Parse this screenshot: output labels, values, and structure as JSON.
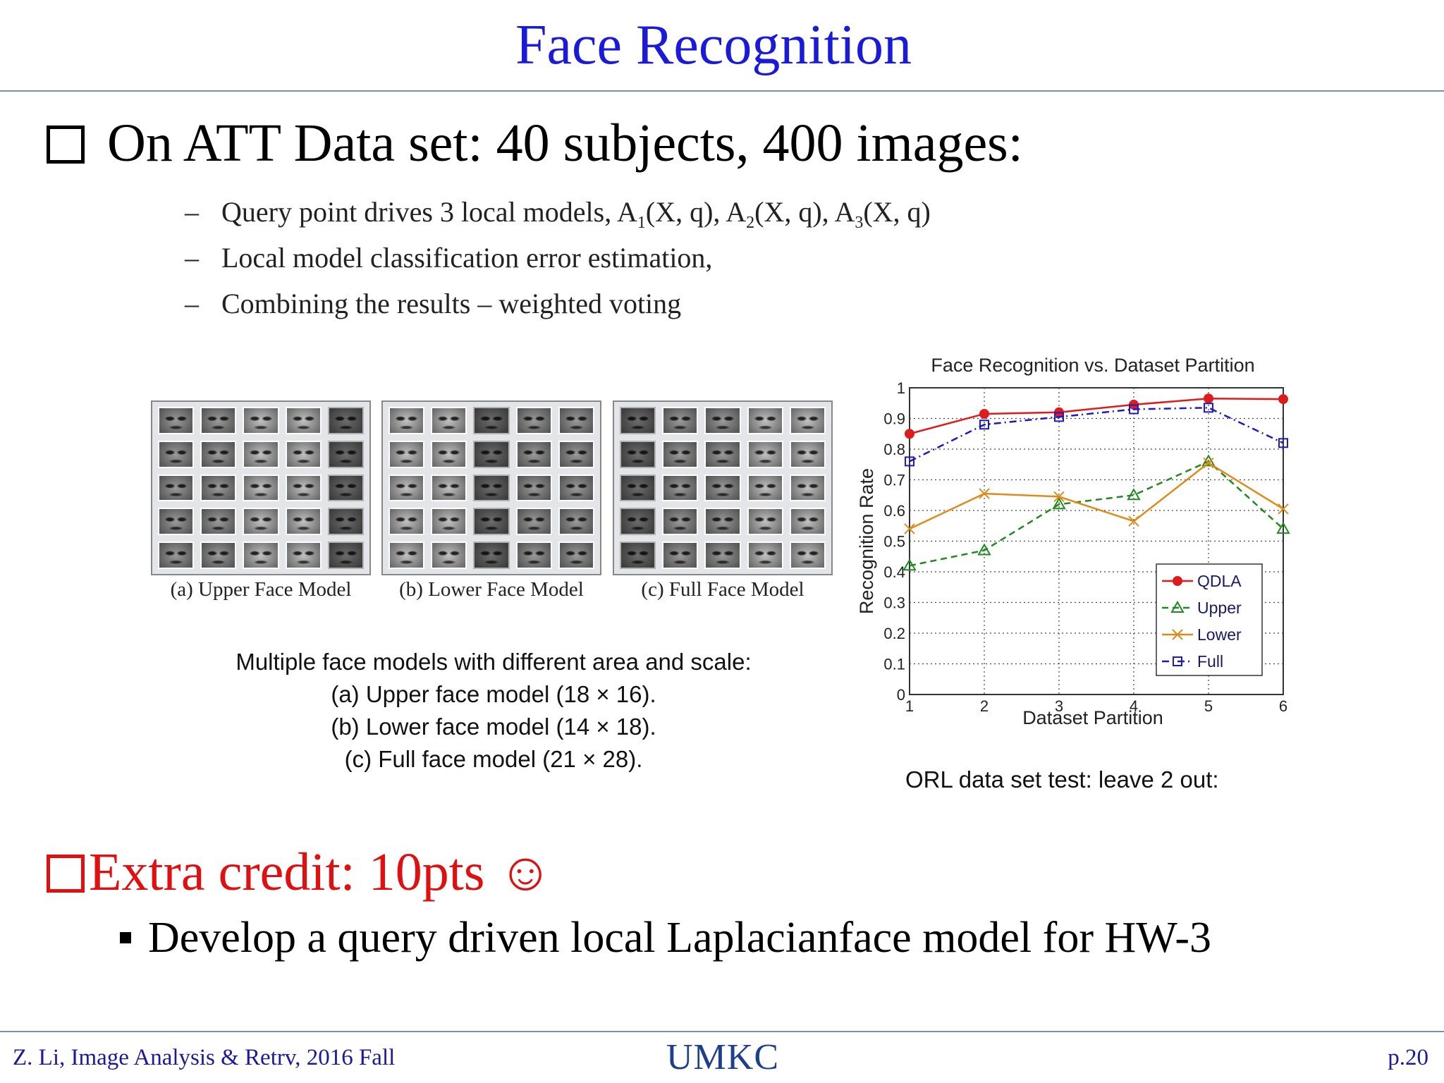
{
  "slide": {
    "title": "Face Recognition",
    "main_bullet": "On ATT Data set: 40 subjects, 400 images:",
    "sub_bullets": [
      {
        "pre": "Query point drives 3 local models, A",
        "s1": "1",
        "m1": "(X, q), A",
        "s2": "2",
        "m2": "(X, q), A",
        "s3": "3",
        "post": "(X, q)"
      },
      {
        "text": "Local model classification error estimation,"
      },
      {
        "text": "Combining the results – weighted voting"
      }
    ]
  },
  "face_models": {
    "panels": [
      {
        "caption": "(a) Upper Face Model"
      },
      {
        "caption": "(b) Lower Face Model"
      },
      {
        "caption": "(c)  Full Face Model"
      }
    ],
    "description": [
      "Multiple face models with different area and scale:",
      "(a) Upper face model (18 × 16).",
      "(b) Lower face model (14 × 18).",
      "(c) Full face model (21 × 28)."
    ]
  },
  "chart_data": {
    "type": "line",
    "title": "Face Recognition vs. Dataset Partition",
    "xlabel": "Dataset Partition",
    "ylabel": "Recognition Rate",
    "x": [
      1,
      2,
      3,
      4,
      5,
      6
    ],
    "xlim": [
      1,
      6
    ],
    "ylim": [
      0,
      1
    ],
    "yticks": [
      "0",
      "0.1",
      "0.2",
      "0.3",
      "0.4",
      "0.5",
      "0.6",
      "0.7",
      "0.8",
      "0.9",
      "1"
    ],
    "xticks": [
      "1",
      "2",
      "3",
      "4",
      "5",
      "6"
    ],
    "grid": true,
    "legend_position": "bottom-right",
    "series": [
      {
        "name": "QDLA",
        "values": [
          0.85,
          0.915,
          0.92,
          0.945,
          0.965,
          0.963
        ],
        "color": "#e01b1b",
        "marker": "dot",
        "dash": "solid"
      },
      {
        "name": "Upper",
        "values": [
          0.42,
          0.47,
          0.62,
          0.65,
          0.76,
          0.54
        ],
        "color": "#1f8a1f",
        "marker": "triangle",
        "dash": "dashed"
      },
      {
        "name": "Lower",
        "values": [
          0.54,
          0.655,
          0.645,
          0.565,
          0.755,
          0.605
        ],
        "color": "#e08a1a",
        "marker": "x",
        "dash": "solid"
      },
      {
        "name": "Full",
        "values": [
          0.76,
          0.88,
          0.905,
          0.93,
          0.935,
          0.82
        ],
        "color": "#1a1acc",
        "marker": "square",
        "dash": "dashdot"
      }
    ],
    "caption": "ORL data set test: leave 2 out:"
  },
  "extra_credit": {
    "heading": "Extra credit: 10pts ☺",
    "item": "Develop a query driven local Laplacianface model for HW-3"
  },
  "footer": {
    "left": "Z. Li,  Image Analysis & Retrv, 2016 Fall",
    "logo": "UMKC",
    "page": "p.20"
  }
}
